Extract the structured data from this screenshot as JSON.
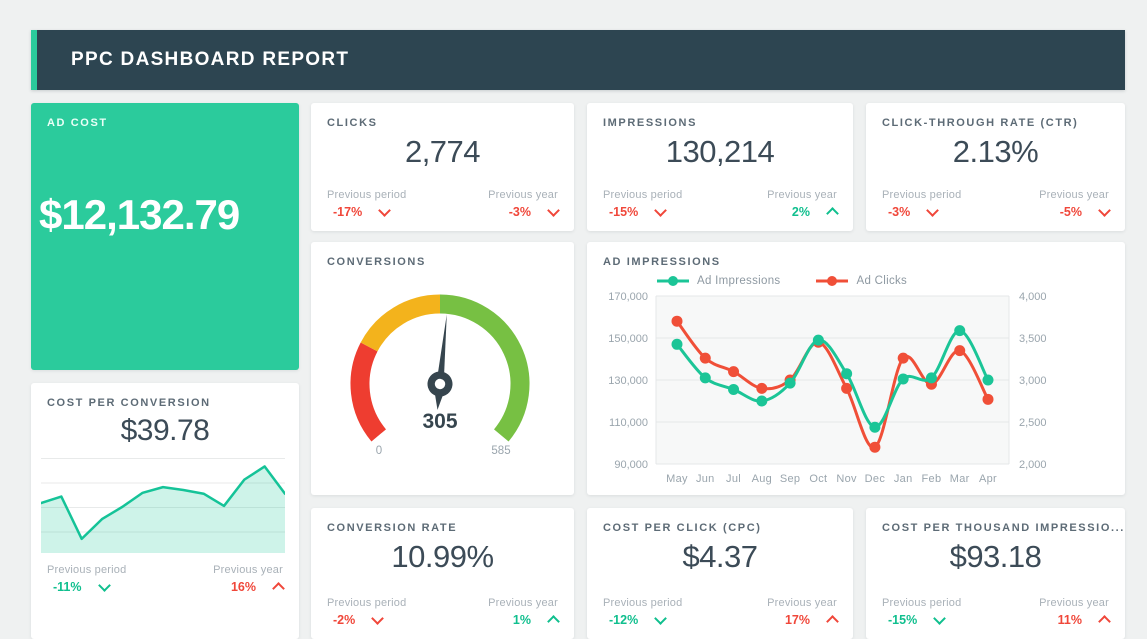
{
  "header": {
    "title": "PPC DASHBOARD REPORT"
  },
  "colors": {
    "accent_green": "#2bcb9c",
    "header_bg": "#2d4551",
    "positive": "#10bf8e",
    "negative": "#f0473a",
    "series_teal": "#1bc597",
    "series_red": "#f04f38",
    "gauge_red": "#ee3d30",
    "gauge_yellow": "#f3b31c",
    "gauge_green": "#77c043"
  },
  "cards": {
    "ad_cost": {
      "title": "AD COST",
      "value": "$12,132.79"
    },
    "clicks": {
      "title": "CLICKS",
      "value": "2,774",
      "prev_period": {
        "label": "Previous period",
        "value": "-17%",
        "dir": "down",
        "tone": "neg"
      },
      "prev_year": {
        "label": "Previous year",
        "value": "-3%",
        "dir": "down",
        "tone": "neg"
      }
    },
    "impressions": {
      "title": "IMPRESSIONS",
      "value": "130,214",
      "prev_period": {
        "label": "Previous period",
        "value": "-15%",
        "dir": "down",
        "tone": "neg"
      },
      "prev_year": {
        "label": "Previous year",
        "value": "2%",
        "dir": "up",
        "tone": "pos"
      }
    },
    "ctr": {
      "title": "CLICK-THROUGH RATE (CTR)",
      "value": "2.13%",
      "prev_period": {
        "label": "Previous period",
        "value": "-3%",
        "dir": "down",
        "tone": "neg"
      },
      "prev_year": {
        "label": "Previous year",
        "value": "-5%",
        "dir": "down",
        "tone": "neg"
      }
    },
    "conversions": {
      "title": "CONVERSIONS"
    },
    "cost_per_conversion": {
      "title": "COST PER CONVERSION",
      "value": "$39.78",
      "prev_period": {
        "label": "Previous period",
        "value": "-11%",
        "dir": "down",
        "tone": "pos"
      },
      "prev_year": {
        "label": "Previous year",
        "value": "16%",
        "dir": "up",
        "tone": "neg"
      }
    },
    "conversion_rate": {
      "title": "CONVERSION RATE",
      "value": "10.99%",
      "prev_period": {
        "label": "Previous period",
        "value": "-2%",
        "dir": "down",
        "tone": "neg"
      },
      "prev_year": {
        "label": "Previous year",
        "value": "1%",
        "dir": "up",
        "tone": "pos"
      }
    },
    "cpc": {
      "title": "COST PER CLICK (CPC)",
      "value": "$4.37",
      "prev_period": {
        "label": "Previous period",
        "value": "-12%",
        "dir": "down",
        "tone": "pos"
      },
      "prev_year": {
        "label": "Previous year",
        "value": "17%",
        "dir": "up",
        "tone": "neg"
      }
    },
    "cpm": {
      "title": "COST PER THOUSAND IMPRESSIO...",
      "value": "$93.18",
      "prev_period": {
        "label": "Previous period",
        "value": "-15%",
        "dir": "down",
        "tone": "pos"
      },
      "prev_year": {
        "label": "Previous year",
        "value": "11%",
        "dir": "up",
        "tone": "neg"
      }
    }
  },
  "chart_data": [
    {
      "id": "ad_impressions",
      "type": "line",
      "title": "AD IMPRESSIONS",
      "legend_position": "top",
      "grid": "horizontal",
      "categories": [
        "May",
        "Jun",
        "Jul",
        "Aug",
        "Sep",
        "Oct",
        "Nov",
        "Dec",
        "Jan",
        "Feb",
        "Mar",
        "Apr"
      ],
      "left_axis": {
        "min": 90000,
        "max": 170000,
        "ticks": [
          "170,000",
          "150,000",
          "130,000",
          "110,000",
          "90,000"
        ]
      },
      "right_axis": {
        "min": 2000,
        "max": 4000,
        "ticks": [
          "4,000",
          "3,500",
          "3,000",
          "2,500",
          "2,000"
        ]
      },
      "series": [
        {
          "name": "Ad Impressions",
          "axis": "left",
          "color": "#1bc597",
          "values": [
            147000,
            131000,
            125500,
            120000,
            128500,
            149000,
            133000,
            107500,
            130500,
            131000,
            153500,
            130000
          ]
        },
        {
          "name": "Ad Clicks",
          "axis": "right",
          "color": "#f04f38",
          "values": [
            3700,
            3260,
            3100,
            2900,
            3000,
            3450,
            2900,
            2200,
            3260,
            2950,
            3350,
            2770
          ]
        }
      ]
    },
    {
      "id": "conversions_gauge",
      "type": "gauge",
      "value": 305,
      "min": 0,
      "max": 585,
      "value_label": "305",
      "min_label": "0",
      "max_label": "585",
      "segments": [
        {
          "from": 0,
          "to": 0.26,
          "color": "#ee3d30"
        },
        {
          "from": 0.26,
          "to": 0.5,
          "color": "#f3b31c"
        },
        {
          "from": 0.5,
          "to": 1,
          "color": "#77c043"
        }
      ],
      "needle_color": "#36454e"
    },
    {
      "id": "cost_per_conversion_trend",
      "type": "area",
      "color": "#15c398",
      "fill": "rgba(34,199,153,0.22)",
      "ylim": [
        0,
        100
      ],
      "values": [
        52,
        59,
        14,
        35,
        48,
        63,
        69,
        66,
        62,
        49,
        77,
        91,
        62
      ]
    }
  ]
}
